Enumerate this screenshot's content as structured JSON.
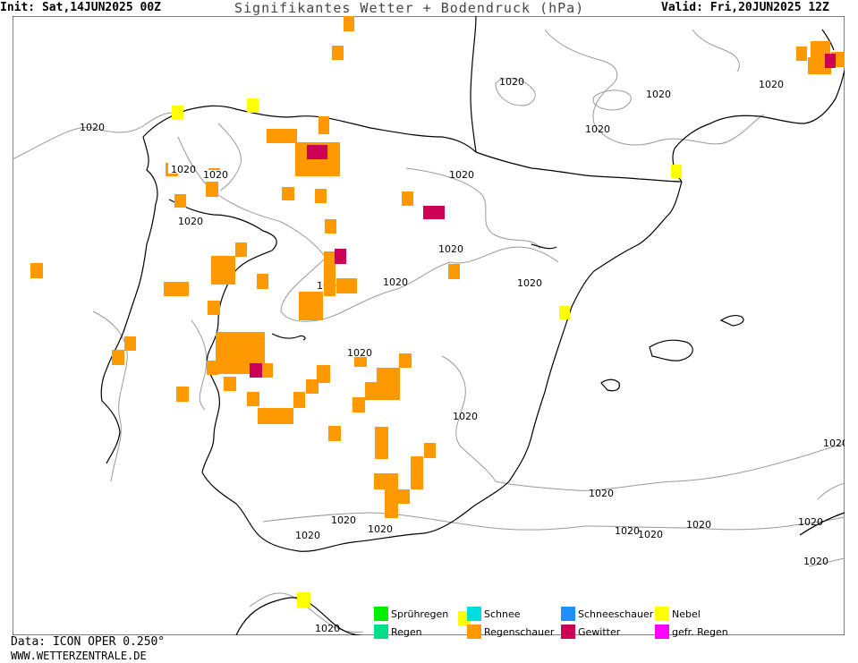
{
  "header": {
    "init": "Init: Sat,14JUN2025 00Z",
    "title": "Signifikantes Wetter + Bodendruck (hPa)",
    "valid": "Valid: Fri,20JUN2025 12Z"
  },
  "isobar_label": "1020",
  "footer": {
    "data_source": "Data: ICON OPER 0.250°",
    "website": "WWW.WETTERZENTRALE.DE"
  },
  "legend": [
    {
      "label": "Sprühregen",
      "color": "#00ee00"
    },
    {
      "label": "Schnee",
      "color": "#00dddd"
    },
    {
      "label": "Schneeschauer",
      "color": "#1e90ff"
    },
    {
      "label": "Nebel",
      "color": "#ffff00"
    },
    {
      "label": "Regen",
      "color": "#00dd88"
    },
    {
      "label": "Regenschauer",
      "color": "#ff9900"
    },
    {
      "label": "Gewitter",
      "color": "#cc0055"
    },
    {
      "label": "gefr. Regen",
      "color": "#ff00ff"
    }
  ],
  "colors": {
    "showers": "#ff9900",
    "thunder": "#cc0055",
    "fog": "#ffff00",
    "coast": "#000000",
    "isobar": "#999999"
  }
}
